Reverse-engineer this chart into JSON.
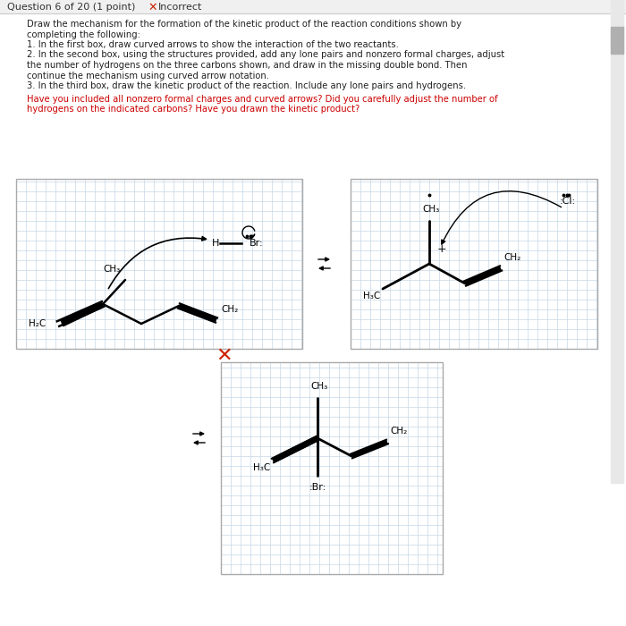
{
  "bg_color": "#ffffff",
  "grid_color": "#c5d8e8",
  "box_border_color": "#aaaaaa",
  "feedback_color": "#cc0000",
  "title_color": "#444444",
  "text_color": "#222222",
  "scrollbar_color": "#cccccc",
  "q_lines": [
    "Draw the mechanism for the formation of the kinetic product of the reaction conditions shown by",
    "completing the following:",
    "1. In the first box, draw curved arrows to show the interaction of the two reactants.",
    "2. In the second box, using the structures provided, add any lone pairs and nonzero formal charges, adjust",
    "the number of hydrogens on the three carbons shown, and draw in the missing double bond. Then",
    "continue the mechanism using curved arrow notation.",
    "3. In the third box, draw the kinetic product of the reaction. Include any lone pairs and hydrogens."
  ],
  "fb_lines": [
    "Have you included all nonzero formal charges and curved arrows? Did you carefully adjust the number of",
    "hydrogens on the indicated carbons? Have you drawn the kinetic product?"
  ]
}
